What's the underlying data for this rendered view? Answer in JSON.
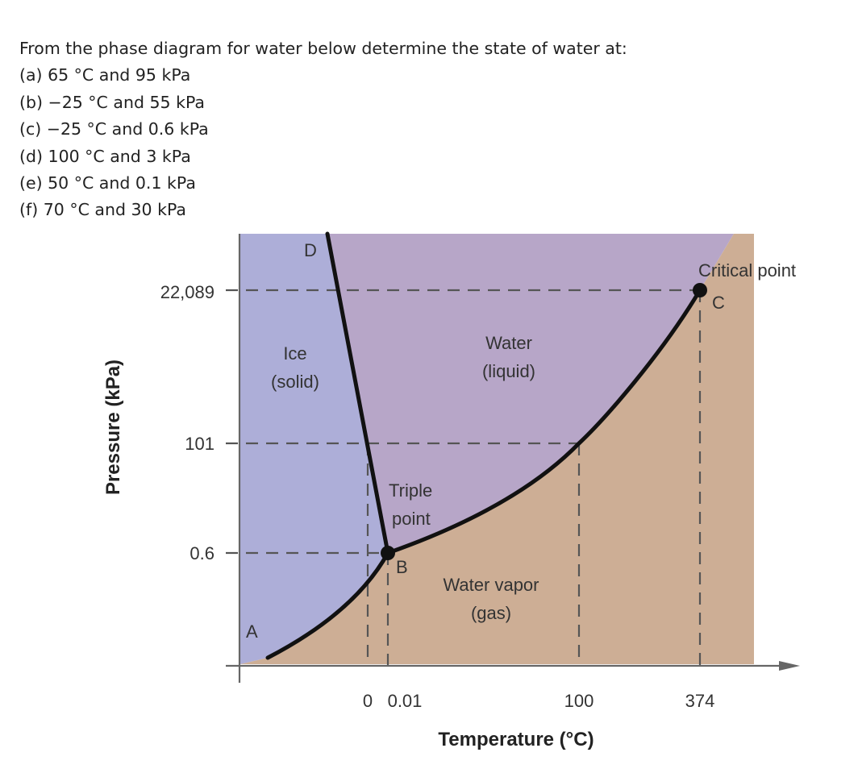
{
  "question": {
    "prompt": "From the phase diagram for water below determine the state of water at:",
    "items": [
      "(a) 65 °C and 95 kPa",
      "(b) −25 °C and 55 kPa",
      "(c) −25 °C and 0.6 kPa",
      "(d) 100 °C and 3 kPa",
      "(e) 50 °C and 0.1 kPa",
      "(f) 70 °C and 30 kPa"
    ]
  },
  "diagram": {
    "x_axis_title": "Temperature (°C)",
    "y_axis_title": "Pressure (kPa)",
    "x_ticks": [
      "0",
      "0.01",
      "100",
      "374"
    ],
    "y_ticks": [
      "22,089",
      "101",
      "0.6"
    ],
    "regions": {
      "solid": [
        "Ice",
        "(solid)"
      ],
      "liquid": [
        "Water",
        "(liquid)"
      ],
      "gas": [
        "Water vapor",
        "(gas)"
      ]
    },
    "points": {
      "A": "A",
      "B": "B",
      "C": "C",
      "D": "D",
      "triple_point": [
        "Triple",
        "point"
      ],
      "critical_point": "Critical point"
    },
    "colors": {
      "solid": "#adaed8",
      "liquid": "#b7a6c8",
      "gas": "#cdae95",
      "curve": "#111111",
      "dash": "#555555",
      "axis": "#666666"
    }
  }
}
